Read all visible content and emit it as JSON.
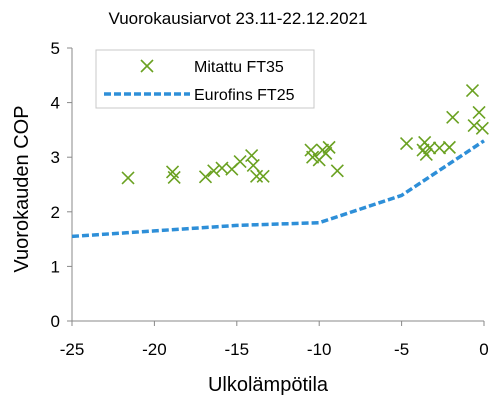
{
  "chart_data": {
    "type": "scatter",
    "title": "Vuorokausiarvot 23.11-22.12.2021",
    "xlabel": "Ulkolämpötila",
    "ylabel": "Vuorokauden COP",
    "xlim": [
      -25,
      0
    ],
    "ylim": [
      0,
      5
    ],
    "x_ticks": [
      -25,
      -20,
      -15,
      -10,
      -5,
      0
    ],
    "y_ticks": [
      0,
      1,
      2,
      3,
      4,
      5
    ],
    "x_tick_labels": [
      "-25",
      "-20",
      "-15",
      "-10",
      "-5",
      "0"
    ],
    "y_tick_labels": [
      "0",
      "1",
      "2",
      "3",
      "4",
      "5"
    ],
    "grid": false,
    "legend_position": "top-left",
    "series": [
      {
        "name": "Mitattu FT35",
        "type": "scatter",
        "marker": "x",
        "color": "#6aa121",
        "points": [
          {
            "x": -21.6,
            "y": 2.62
          },
          {
            "x": -18.9,
            "y": 2.73
          },
          {
            "x": -18.8,
            "y": 2.63
          },
          {
            "x": -16.9,
            "y": 2.64
          },
          {
            "x": -16.4,
            "y": 2.75
          },
          {
            "x": -15.9,
            "y": 2.8
          },
          {
            "x": -15.3,
            "y": 2.78
          },
          {
            "x": -14.8,
            "y": 2.92
          },
          {
            "x": -14.1,
            "y": 3.03
          },
          {
            "x": -14.0,
            "y": 2.85
          },
          {
            "x": -13.8,
            "y": 2.65
          },
          {
            "x": -13.4,
            "y": 2.65
          },
          {
            "x": -10.5,
            "y": 3.13
          },
          {
            "x": -10.4,
            "y": 3.0
          },
          {
            "x": -10.0,
            "y": 2.95
          },
          {
            "x": -9.8,
            "y": 3.13
          },
          {
            "x": -9.6,
            "y": 3.07
          },
          {
            "x": -9.4,
            "y": 3.18
          },
          {
            "x": -8.9,
            "y": 2.75
          },
          {
            "x": -4.7,
            "y": 3.25
          },
          {
            "x": -3.7,
            "y": 3.13
          },
          {
            "x": -3.6,
            "y": 3.27
          },
          {
            "x": -3.5,
            "y": 3.05
          },
          {
            "x": -3.3,
            "y": 3.17
          },
          {
            "x": -2.7,
            "y": 3.17
          },
          {
            "x": -2.1,
            "y": 3.18
          },
          {
            "x": -1.9,
            "y": 3.73
          },
          {
            "x": -0.7,
            "y": 4.22
          },
          {
            "x": -0.6,
            "y": 3.58
          },
          {
            "x": -0.3,
            "y": 3.82
          },
          {
            "x": -0.1,
            "y": 3.53
          }
        ]
      },
      {
        "name": "Eurofins FT25",
        "type": "line",
        "style": "dashed",
        "color": "#2e8fd8",
        "points": [
          {
            "x": -25,
            "y": 1.55
          },
          {
            "x": -20,
            "y": 1.65
          },
          {
            "x": -15,
            "y": 1.75
          },
          {
            "x": -10,
            "y": 1.8
          },
          {
            "x": -5,
            "y": 2.3
          },
          {
            "x": 0,
            "y": 3.3
          }
        ]
      }
    ]
  }
}
